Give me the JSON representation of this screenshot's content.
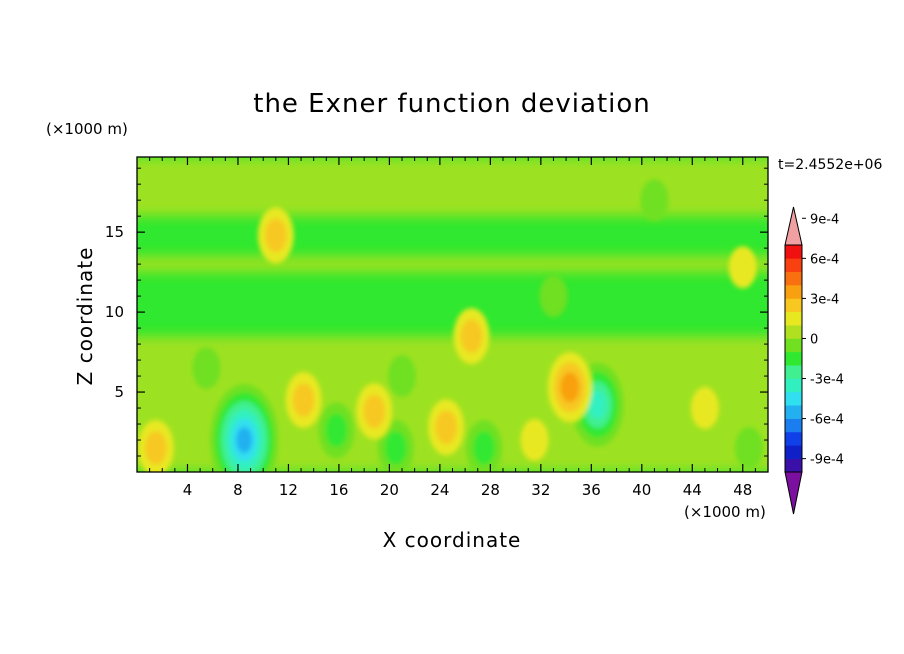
{
  "chart_data": {
    "type": "heatmap",
    "title": "the Exner function deviation",
    "xlabel": "X coordinate",
    "ylabel": "Z coordinate",
    "x_unit": "(×1000 m)",
    "y_unit": "(×1000 m)",
    "time_label": "t=2.4552e+06",
    "xlim": [
      0,
      50
    ],
    "ylim": [
      0,
      19.7
    ],
    "x_ticks": [
      4,
      8,
      12,
      16,
      20,
      24,
      28,
      32,
      36,
      40,
      44,
      48
    ],
    "y_ticks": [
      5,
      10,
      15
    ],
    "grid": false,
    "colorbar": {
      "placement": "right",
      "min": -0.0011,
      "max": 0.0011,
      "step": 0.0001,
      "extend": "both",
      "tick_labels": [
        {
          "value": 0.0009,
          "label": "9e-4"
        },
        {
          "value": 0.0006,
          "label": "6e-4"
        },
        {
          "value": 0.0003,
          "label": "3e-4"
        },
        {
          "value": 0,
          "label": "0"
        },
        {
          "value": -0.0003,
          "label": "-3e-4"
        },
        {
          "value": -0.0006,
          "label": "-6e-4"
        },
        {
          "value": -0.0009,
          "label": "-9e-4"
        }
      ],
      "colors": [
        "#7b0fa0",
        "#3a10a8",
        "#1020c8",
        "#1040e8",
        "#1a7ef0",
        "#22b0f0",
        "#30e0f0",
        "#30f0c0",
        "#40f090",
        "#30e830",
        "#70e020",
        "#b0e020",
        "#e8e820",
        "#f8c820",
        "#f8a010",
        "#f87010",
        "#f84010",
        "#f01010",
        "#f0a0a0"
      ]
    },
    "features": [
      {
        "kind": "low",
        "x": 8.5,
        "z": 2.0,
        "value": -0.0006
      },
      {
        "kind": "low",
        "x": 36.5,
        "z": 4.2,
        "value": -0.0004
      },
      {
        "kind": "low",
        "x": 20.5,
        "z": 1.5,
        "value": -0.0002
      },
      {
        "kind": "low",
        "x": 27.5,
        "z": 1.5,
        "value": -0.0002
      },
      {
        "kind": "low",
        "x": 15.8,
        "z": 2.6,
        "value": -0.0002
      },
      {
        "kind": "low",
        "x": 48.5,
        "z": 1.5,
        "value": -0.0001
      },
      {
        "kind": "low",
        "x": 5.5,
        "z": 6.5,
        "value": -0.0001
      },
      {
        "kind": "low",
        "x": 21.0,
        "z": 6.0,
        "value": -0.0001
      },
      {
        "kind": "low",
        "x": 41.0,
        "z": 17.0,
        "value": -0.0001
      },
      {
        "kind": "low",
        "x": 33.0,
        "z": 11.0,
        "value": -0.0001
      },
      {
        "kind": "high",
        "x": 13.2,
        "z": 4.5,
        "value": 0.0002
      },
      {
        "kind": "high",
        "x": 18.8,
        "z": 3.8,
        "value": 0.0002
      },
      {
        "kind": "high",
        "x": 24.5,
        "z": 2.8,
        "value": 0.0002
      },
      {
        "kind": "high",
        "x": 34.3,
        "z": 5.3,
        "value": 0.0003
      },
      {
        "kind": "high",
        "x": 1.5,
        "z": 1.5,
        "value": 0.0002
      },
      {
        "kind": "high",
        "x": 31.5,
        "z": 2.0,
        "value": 0.0001
      },
      {
        "kind": "high",
        "x": 11.0,
        "z": 14.8,
        "value": 0.0002
      },
      {
        "kind": "high",
        "x": 26.5,
        "z": 8.5,
        "value": 0.0002
      },
      {
        "kind": "high",
        "x": 45.0,
        "z": 4.0,
        "value": 0.0001
      },
      {
        "kind": "high",
        "x": 48.0,
        "z": 12.8,
        "value": 0.0001
      }
    ]
  }
}
